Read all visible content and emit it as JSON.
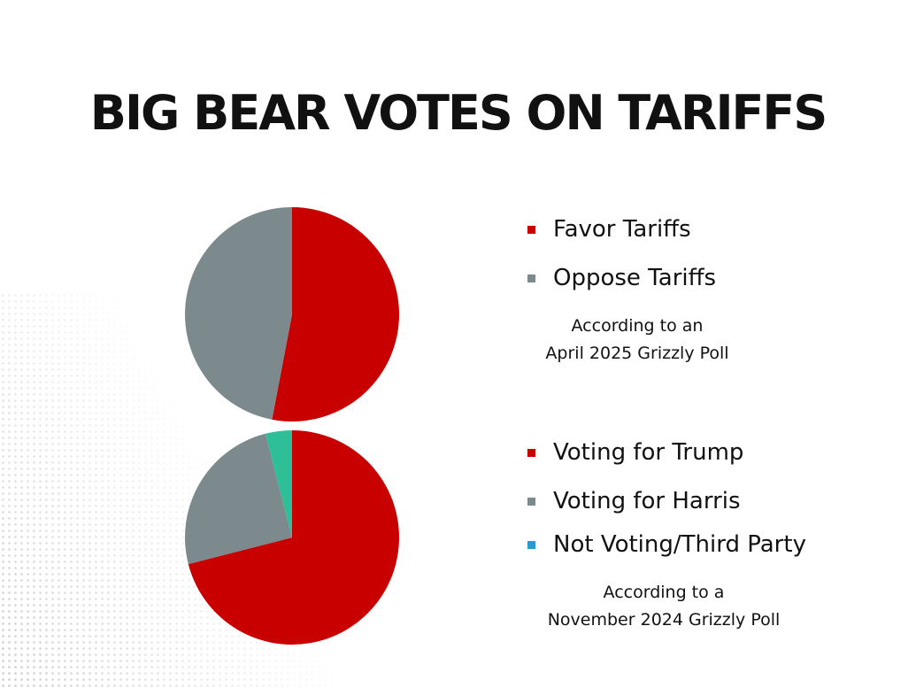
{
  "title": "BIG BEAR VOTES ON TARIFFS",
  "chart_data": [
    {
      "type": "pie",
      "categories": [
        "Favor Tariffs",
        "Oppose Tariffs"
      ],
      "values": [
        53,
        47
      ],
      "colors": [
        "#c90000",
        "#7c8a8e"
      ],
      "legend_colors": [
        "#c90000",
        "#7c8a8e"
      ],
      "legend": "right",
      "note": [
        "According to an",
        "April 2025 Grizzly Poll"
      ]
    },
    {
      "type": "pie",
      "categories": [
        "Voting for Trump",
        "Voting for Harris",
        "Not Voting/Third Party"
      ],
      "values": [
        71,
        25,
        4
      ],
      "colors": [
        "#c90000",
        "#7c8a8e",
        "#2ebf98"
      ],
      "legend_colors": [
        "#c90000",
        "#7c8a8e",
        "#2a9ad0"
      ],
      "legend": "right",
      "note": [
        "According to a",
        "November 2024 Grizzly Poll"
      ]
    }
  ]
}
